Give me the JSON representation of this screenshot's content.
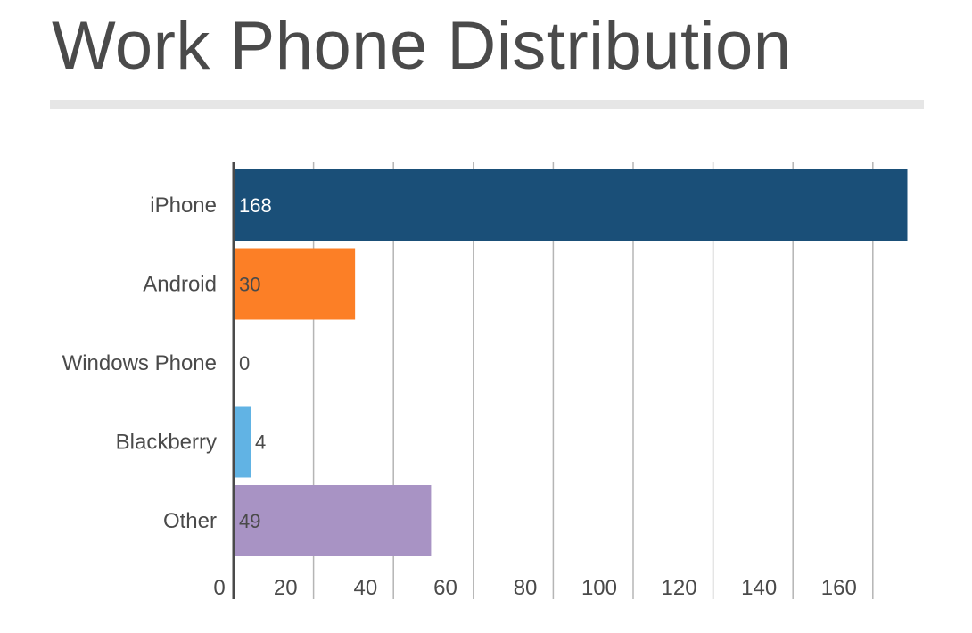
{
  "chart_data": {
    "type": "bar",
    "orientation": "horizontal",
    "title": "Work Phone Distribution",
    "categories": [
      "iPhone",
      "Android",
      "Windows Phone",
      "Blackberry",
      "Other"
    ],
    "values": [
      168,
      30,
      0,
      4,
      49
    ],
    "colors": [
      "#1a4f78",
      "#fc7f26",
      "#cccccc",
      "#61b3e4",
      "#a893c4"
    ],
    "label_colors": [
      "#ffffff",
      "#4a4a4a",
      "#4a4a4a",
      "#4a4a4a",
      "#4a4a4a"
    ],
    "xticks": [
      0,
      20,
      40,
      60,
      80,
      100,
      120,
      140,
      160
    ],
    "xlim": [
      0,
      168
    ],
    "grid": true,
    "legend": "none"
  }
}
